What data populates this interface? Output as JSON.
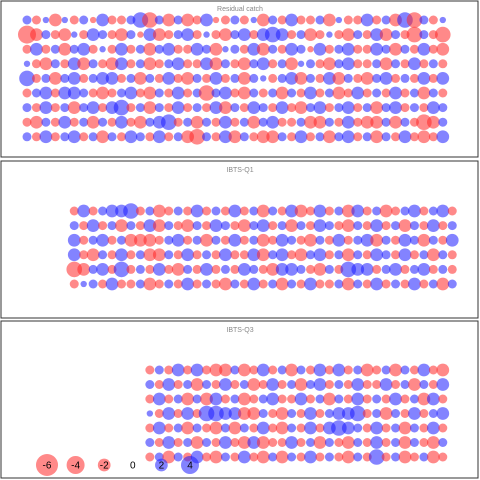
{
  "chart_data": [
    {
      "type": "bubble",
      "title": "Residual catch",
      "positive_color": "rgba(30,30,255,0.55)",
      "negative_color": "rgba(255,40,40,0.55)",
      "rows": [
        [
          1,
          -1,
          0.5,
          -2,
          0.5,
          -1,
          1,
          -0.5,
          2,
          -1,
          -1,
          1,
          3,
          -3,
          1,
          -2,
          1,
          -2,
          -1,
          2,
          -0.5,
          -1,
          1,
          -1,
          0.5,
          -2,
          1,
          -1,
          2,
          -1,
          -1,
          1,
          -2,
          0.5,
          -1,
          -1,
          2,
          -1,
          1,
          -2,
          3,
          -3,
          1,
          -1,
          0.5
        ],
        [
          -4,
          -2,
          1,
          -1,
          -2,
          0.5,
          -1,
          2,
          1,
          -1,
          -2,
          1,
          -0.5,
          2,
          -2,
          -1,
          1,
          2,
          -1,
          0.5,
          -1,
          -2,
          1,
          2,
          -1,
          2,
          3,
          2,
          -1,
          1,
          -2,
          -1,
          0.5,
          -1,
          -2,
          1,
          -1,
          2,
          -2,
          1,
          -1,
          -3,
          1,
          -1,
          -3
        ],
        [
          -1,
          2,
          -1,
          1,
          -2,
          1,
          2,
          -1,
          0.5,
          -1,
          2,
          -1,
          1,
          -2,
          1,
          2,
          -1,
          -1,
          2,
          1,
          -2,
          0.5,
          1,
          -1,
          2,
          -2,
          1,
          -1,
          2,
          1,
          -0.5,
          2,
          -1,
          1,
          2,
          -1,
          -1,
          2,
          1,
          -2,
          1,
          -1,
          2,
          -1,
          -2
        ],
        [
          0.5,
          -1,
          -2,
          1,
          -1,
          2,
          -2,
          1,
          -1,
          -2,
          2,
          -1,
          1,
          -2,
          -1,
          1,
          2,
          -1,
          -1,
          2,
          -2,
          1,
          -1,
          -2,
          1,
          2,
          -1,
          1,
          -2,
          0.5,
          1,
          -1,
          -2,
          1,
          2,
          -1,
          -1,
          1,
          -2,
          1,
          -1,
          2,
          -1,
          1,
          -1
        ],
        [
          3,
          -1,
          1,
          -2,
          1,
          2,
          -1,
          1,
          2,
          2,
          -1,
          1,
          -2,
          1,
          -1,
          2,
          -1,
          -2,
          1,
          -1,
          2,
          -1,
          1,
          -2,
          1,
          0.5,
          -1,
          1,
          2,
          -2,
          1,
          -1,
          2,
          -2,
          1,
          -1,
          -2,
          1,
          2,
          -1,
          1,
          -1,
          2,
          -1,
          2
        ],
        [
          -1,
          1,
          2,
          -1,
          2,
          2,
          1,
          -1,
          -2,
          -1,
          1,
          2,
          -1,
          -2,
          1,
          -1,
          2,
          -1,
          1,
          -3,
          1,
          2,
          -1,
          -2,
          1,
          -1,
          1,
          -2,
          1,
          -1,
          2,
          -1,
          1,
          -2,
          -1,
          2,
          -1,
          1,
          -1,
          2,
          -1,
          1,
          -2,
          1,
          -1
        ],
        [
          1,
          -1,
          2,
          -1,
          1,
          -2,
          1,
          2,
          -1,
          2,
          3,
          -1,
          1,
          -2,
          1,
          -1,
          2,
          -1,
          1,
          -1,
          2,
          -2,
          1,
          -1,
          2,
          1,
          -1,
          2,
          -1,
          -2,
          1,
          2,
          -1,
          1,
          2,
          -1,
          1,
          -2,
          1,
          2,
          -1,
          1,
          -1,
          2,
          1
        ],
        [
          -1,
          -2,
          1,
          -1,
          2,
          -1,
          1,
          -2,
          1,
          -1,
          2,
          -1,
          -2,
          1,
          2,
          3,
          -1,
          1,
          -2,
          1,
          -1,
          2,
          -1,
          1,
          -2,
          1,
          2,
          -1,
          -1,
          1,
          -2,
          -2,
          1,
          -1,
          2,
          -1,
          -2,
          -2,
          1,
          -2,
          1,
          -1,
          -3,
          -2,
          1
        ],
        [
          1,
          -1,
          2,
          -1,
          1,
          2,
          -1,
          1,
          -2,
          1,
          -1,
          2,
          1,
          -1,
          2,
          -1,
          1,
          -2,
          -3,
          1,
          -1,
          2,
          -2,
          1,
          -1,
          -2,
          -2,
          1,
          -1,
          2,
          -1,
          1,
          -2,
          1,
          2,
          -1,
          1,
          -2,
          1,
          -1,
          2,
          -1,
          -2,
          -1,
          2
        ]
      ]
    },
    {
      "type": "bubble",
      "title": "IBTS-Q1",
      "positive_color": "rgba(30,30,255,0.55)",
      "negative_color": "rgba(255,40,40,0.55)",
      "rows": [
        [
          null,
          null,
          null,
          null,
          null,
          -1,
          2,
          -1,
          1,
          2,
          2,
          3,
          -1,
          1,
          -2,
          -1,
          1,
          -1,
          2,
          -1,
          1,
          -1,
          2,
          -1,
          1,
          -2,
          1,
          -1,
          2,
          -2,
          -1,
          2,
          -1,
          1,
          -2,
          2,
          -1,
          1,
          -2,
          -1,
          1,
          2,
          -1,
          1,
          2,
          -1
        ],
        [
          null,
          null,
          null,
          null,
          null,
          1,
          -1,
          2,
          -1,
          1,
          -2,
          1,
          -1,
          2,
          -2,
          1,
          -1,
          -2,
          1,
          -1,
          2,
          1,
          -1,
          -2,
          1,
          2,
          -1,
          1,
          -2,
          1,
          -1,
          2,
          1,
          -1,
          -2,
          1,
          -1,
          2,
          -1,
          1,
          -2,
          1,
          -1,
          2,
          -1,
          1
        ],
        [
          null,
          null,
          null,
          null,
          null,
          2,
          -1,
          1,
          2,
          -1,
          1,
          -2,
          -2,
          -2,
          -1,
          1,
          2,
          -1,
          1,
          -2,
          1,
          -1,
          2,
          -1,
          1,
          -2,
          -1,
          2,
          1,
          -1,
          -2,
          1,
          -1,
          2,
          -1,
          1,
          2,
          -2,
          1,
          -1,
          2,
          1,
          -2,
          1,
          -1,
          2
        ],
        [
          null,
          null,
          null,
          null,
          null,
          2,
          -1,
          -2,
          1,
          -1,
          2,
          -1,
          1,
          -2,
          -2,
          1,
          -1,
          2,
          -1,
          1,
          -1,
          2,
          -1,
          -1,
          2,
          -2,
          1,
          2,
          -1,
          -2,
          1,
          2,
          -1,
          1,
          -2,
          1,
          -1,
          2,
          1,
          -1,
          2,
          -1,
          1,
          -2,
          1,
          -1
        ],
        [
          null,
          null,
          null,
          null,
          null,
          -3,
          -2,
          1,
          2,
          -1,
          3,
          -1,
          1,
          -1,
          2,
          -1,
          -2,
          1,
          -1,
          2,
          -1,
          1,
          -1,
          2,
          1,
          -1,
          -2,
          2,
          2,
          1,
          -1,
          -2,
          1,
          -1,
          3,
          2,
          2,
          -1,
          1,
          2,
          -1,
          1,
          2,
          -1,
          1,
          -1
        ],
        [
          null,
          null,
          null,
          null,
          null,
          -1,
          0.5,
          1,
          -1,
          2,
          -1,
          -1,
          1,
          -2,
          -1,
          1,
          -1,
          2,
          -1,
          1,
          -1,
          -2,
          1,
          -1,
          2,
          -1,
          1,
          -2,
          1,
          -1,
          2,
          -1,
          -1,
          1,
          -2,
          1,
          -1,
          2,
          -1,
          1,
          -1,
          2,
          -1,
          1,
          -2,
          1
        ]
      ]
    },
    {
      "type": "bubble",
      "title": "IBTS-Q3",
      "positive_color": "rgba(30,30,255,0.55)",
      "negative_color": "rgba(255,40,40,0.55)",
      "rows": [
        [
          null,
          null,
          null,
          null,
          null,
          null,
          null,
          null,
          null,
          null,
          null,
          null,
          null,
          -1,
          1,
          -1,
          2,
          -1,
          2,
          -1,
          -2,
          -2,
          1,
          -2,
          -1,
          2,
          -1,
          1,
          -2,
          1,
          -1,
          2,
          -1,
          2,
          -1,
          1,
          -2,
          -1,
          1,
          -2,
          1,
          -1,
          2,
          -1,
          -2
        ],
        [
          null,
          null,
          null,
          null,
          null,
          null,
          null,
          null,
          null,
          null,
          null,
          null,
          null,
          1,
          -1,
          2,
          -1,
          1,
          -2,
          1,
          -1,
          2,
          -1,
          1,
          -2,
          -1,
          2,
          -1,
          1,
          -2,
          1,
          2,
          -1,
          1,
          -1,
          2,
          -1,
          -1,
          2,
          -1,
          1,
          -2,
          1,
          -1,
          2
        ],
        [
          null,
          null,
          null,
          null,
          null,
          null,
          null,
          null,
          null,
          null,
          null,
          null,
          null,
          -1,
          2,
          -1,
          1,
          -2,
          1,
          -2,
          2,
          -1,
          1,
          -2,
          -1,
          1,
          2,
          -1,
          -1,
          2,
          -1,
          1,
          -2,
          1,
          -1,
          2,
          -1,
          1,
          -1,
          2,
          -1,
          1,
          -2,
          2,
          -1
        ],
        [
          null,
          null,
          null,
          null,
          null,
          null,
          null,
          null,
          null,
          null,
          null,
          null,
          null,
          0.5,
          -1,
          2,
          -1,
          2,
          -1,
          3,
          3,
          2,
          2,
          -2,
          -2,
          1,
          -1,
          -2,
          1,
          -1,
          2,
          -1,
          1,
          2,
          2,
          3,
          -1,
          1,
          -2,
          1,
          -1,
          2,
          -1,
          1,
          2
        ],
        [
          null,
          null,
          null,
          null,
          null,
          null,
          null,
          null,
          null,
          null,
          null,
          null,
          null,
          -1,
          2,
          -1,
          1,
          -2,
          1,
          -1,
          -2,
          1,
          -2,
          1,
          -1,
          2,
          -1,
          -2,
          1,
          -1,
          2,
          -1,
          2,
          3,
          2,
          1,
          -1,
          2,
          -1,
          1,
          -2,
          1,
          -1,
          2,
          -1
        ],
        [
          null,
          null,
          null,
          null,
          null,
          null,
          null,
          null,
          null,
          null,
          null,
          null,
          null,
          1,
          -1,
          2,
          -1,
          1,
          -2,
          1,
          -1,
          2,
          -1,
          -2,
          2,
          -2,
          -1,
          -1,
          2,
          -1,
          1,
          -2,
          1,
          -1,
          -2,
          1,
          -1,
          2,
          -1,
          1,
          -2,
          1,
          -1,
          -2,
          1
        ],
        [
          null,
          null,
          null,
          null,
          null,
          null,
          null,
          null,
          null,
          null,
          null,
          null,
          null,
          -1,
          1,
          -2,
          1,
          -1,
          2,
          -1,
          -2,
          1,
          -1,
          2,
          -1,
          -2,
          1,
          -2,
          1,
          -1,
          2,
          -1,
          1,
          -1,
          -2,
          1,
          -1,
          3,
          -1,
          1,
          -2,
          -1,
          1,
          -2,
          -1
        ]
      ],
      "legend": [
        -6,
        -4,
        -2,
        0,
        2,
        4
      ]
    }
  ]
}
